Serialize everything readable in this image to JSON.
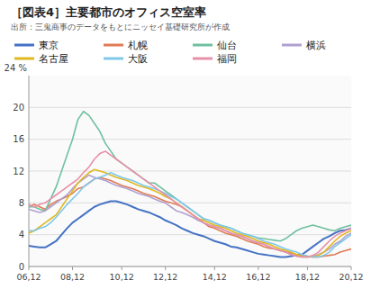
{
  "chart_data": {
    "type": "line",
    "title": "［図表4］主要都市のオフィス空室率",
    "subtitle": "出所：三鬼商事のデータをもとにニッセイ基礎研究所が作成",
    "y_label": "24 %",
    "ylim": [
      0,
      24
    ],
    "yticks": [
      0,
      4,
      8,
      12,
      16,
      20
    ],
    "grid": true,
    "legend": "top",
    "categories": [
      "06,12",
      null,
      null,
      null,
      null,
      null,
      null,
      null,
      "08,12",
      null,
      null,
      null,
      null,
      null,
      null,
      null,
      null,
      "10,12",
      null,
      null,
      null,
      null,
      null,
      null,
      null,
      "12,12",
      null,
      null,
      null,
      null,
      null,
      null,
      null,
      null,
      "14,12",
      null,
      null,
      null,
      null,
      null,
      null,
      null,
      "16,12",
      null,
      null,
      null,
      null,
      null,
      null,
      null,
      null,
      "18,12",
      null,
      null,
      null,
      null,
      null,
      null,
      null,
      "20,12"
    ],
    "series": [
      {
        "name": "東京",
        "color": "#4472C4",
        "values": [
          2.6,
          2.5,
          2.4,
          2.4,
          2.8,
          3.2,
          4.0,
          4.8,
          5.5,
          6.0,
          6.5,
          7.0,
          7.5,
          7.8,
          8.0,
          8.2,
          8.2,
          8.0,
          7.8,
          7.5,
          7.2,
          7.0,
          6.8,
          6.5,
          6.2,
          5.8,
          5.5,
          5.2,
          4.8,
          4.5,
          4.2,
          4.0,
          3.8,
          3.5,
          3.2,
          3.0,
          2.8,
          2.5,
          2.4,
          2.2,
          2.0,
          1.8,
          1.6,
          1.5,
          1.4,
          1.3,
          1.2,
          1.2,
          1.3,
          1.4,
          1.5,
          2.0,
          2.5,
          3.0,
          3.5,
          3.8,
          4.2,
          4.5,
          4.6,
          4.8
        ]
      },
      {
        "name": "札幌",
        "color": "#E07B54",
        "values": [
          7.5,
          7.8,
          7.5,
          7.2,
          7.8,
          8.2,
          8.5,
          8.8,
          9.2,
          9.8,
          10.0,
          10.5,
          11.0,
          11.2,
          11.0,
          10.8,
          10.5,
          10.2,
          10.0,
          9.8,
          9.5,
          9.2,
          9.0,
          8.8,
          8.5,
          8.2,
          8.0,
          7.8,
          7.5,
          7.0,
          6.5,
          6.0,
          5.5,
          5.0,
          4.8,
          4.5,
          4.2,
          4.0,
          3.8,
          3.5,
          3.2,
          3.0,
          2.8,
          2.5,
          2.3,
          2.2,
          2.0,
          1.8,
          1.7,
          1.5,
          1.4,
          1.3,
          1.2,
          1.2,
          1.3,
          1.4,
          1.5,
          1.8,
          2.0,
          2.2
        ]
      },
      {
        "name": "仙台",
        "color": "#70C0A0",
        "values": [
          7.5,
          7.5,
          7.2,
          7.0,
          8.5,
          10.0,
          12.0,
          14.0,
          16.0,
          18.5,
          19.5,
          19.0,
          18.0,
          17.0,
          15.5,
          14.5,
          13.5,
          13.0,
          12.5,
          12.0,
          11.5,
          11.0,
          10.5,
          10.5,
          10.0,
          9.5,
          9.0,
          8.5,
          8.0,
          7.5,
          7.0,
          6.5,
          6.0,
          5.8,
          5.5,
          5.2,
          5.0,
          4.8,
          4.5,
          4.2,
          4.0,
          3.8,
          3.6,
          3.5,
          3.4,
          3.3,
          3.2,
          3.5,
          4.0,
          4.5,
          4.8,
          5.0,
          5.2,
          5.0,
          4.8,
          4.6,
          4.5,
          4.8,
          5.0,
          5.2
        ]
      },
      {
        "name": "横浜",
        "color": "#B0A0D0",
        "values": [
          7.2,
          7.0,
          6.8,
          7.0,
          7.5,
          8.0,
          8.5,
          9.0,
          9.8,
          10.5,
          11.0,
          11.5,
          11.2,
          11.0,
          10.8,
          10.5,
          10.2,
          10.0,
          9.8,
          9.5,
          9.2,
          9.0,
          8.8,
          8.5,
          8.2,
          8.0,
          7.5,
          7.0,
          6.8,
          6.5,
          6.2,
          5.8,
          5.5,
          5.2,
          5.0,
          4.8,
          4.5,
          4.2,
          4.0,
          3.8,
          3.5,
          3.2,
          3.0,
          2.8,
          2.5,
          2.2,
          2.0,
          1.8,
          1.5,
          1.3,
          1.2,
          1.2,
          1.3,
          1.5,
          1.8,
          2.2,
          2.8,
          3.2,
          3.8,
          4.2
        ]
      },
      {
        "name": "名古屋",
        "color": "#E0B820",
        "values": [
          4.2,
          4.5,
          5.0,
          5.5,
          6.0,
          6.5,
          7.5,
          8.5,
          9.5,
          10.5,
          11.2,
          11.8,
          12.2,
          12.0,
          11.8,
          11.5,
          11.2,
          11.0,
          10.8,
          10.5,
          10.2,
          10.0,
          9.8,
          9.5,
          9.2,
          8.8,
          8.5,
          8.0,
          7.5,
          7.0,
          6.5,
          6.0,
          5.8,
          5.5,
          5.2,
          5.0,
          4.8,
          4.5,
          4.2,
          4.0,
          3.8,
          3.5,
          3.2,
          3.0,
          2.8,
          2.5,
          2.2,
          2.0,
          1.8,
          1.5,
          1.3,
          1.2,
          1.2,
          1.4,
          1.8,
          2.5,
          3.2,
          3.8,
          4.2,
          4.5
        ]
      },
      {
        "name": "大阪",
        "color": "#80C8E8",
        "values": [
          4.5,
          4.5,
          4.8,
          5.0,
          5.5,
          6.2,
          7.0,
          7.8,
          8.5,
          9.2,
          10.0,
          10.5,
          11.0,
          11.2,
          11.5,
          11.8,
          11.5,
          11.2,
          11.0,
          10.8,
          10.5,
          10.2,
          10.0,
          9.8,
          9.5,
          9.2,
          8.8,
          8.5,
          8.0,
          7.5,
          7.0,
          6.5,
          6.0,
          5.8,
          5.5,
          5.2,
          5.0,
          4.8,
          4.5,
          4.2,
          4.0,
          3.8,
          3.5,
          3.2,
          3.0,
          2.8,
          2.5,
          2.2,
          2.0,
          1.8,
          1.5,
          1.3,
          1.2,
          1.2,
          1.4,
          1.8,
          2.5,
          3.0,
          3.5,
          4.0
        ]
      },
      {
        "name": "福岡",
        "color": "#E890A8",
        "values": [
          7.8,
          7.5,
          7.8,
          8.0,
          8.5,
          9.0,
          9.5,
          10.0,
          10.5,
          11.0,
          11.8,
          12.5,
          13.5,
          14.2,
          14.5,
          14.0,
          13.5,
          13.0,
          12.5,
          12.0,
          11.5,
          11.0,
          10.5,
          10.0,
          9.5,
          9.0,
          8.5,
          8.0,
          7.5,
          7.0,
          6.5,
          6.0,
          5.5,
          5.2,
          5.0,
          4.8,
          4.5,
          4.2,
          4.0,
          3.8,
          3.5,
          3.2,
          3.0,
          2.8,
          2.5,
          2.2,
          2.0,
          1.8,
          1.5,
          1.3,
          1.2,
          1.2,
          1.4,
          1.8,
          2.5,
          3.2,
          3.8,
          4.2,
          4.5,
          4.8
        ]
      }
    ]
  }
}
